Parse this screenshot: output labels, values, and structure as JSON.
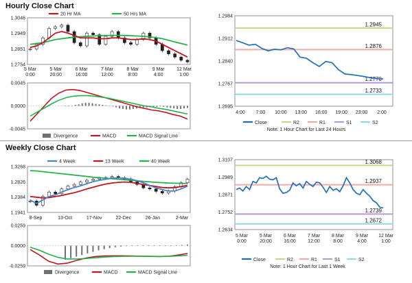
{
  "titles": {
    "hourly": "Hourly Close Chart",
    "weekly": "Weekly Close Chart"
  },
  "chart_data": [
    {
      "id": "hourly_price",
      "type": "candlestick",
      "legend": [
        "20 Hr MA",
        "50 Hrs MA"
      ],
      "yticks": [
        "1.3046",
        "1.2949",
        "1.2851",
        "1.2754"
      ],
      "ylim": [
        1.2754,
        1.3046
      ],
      "xticks": [
        [
          "5 Mar",
          "0:00"
        ],
        [
          "5 Mar",
          "20:00"
        ],
        [
          "6 Mar",
          "16:00"
        ],
        [
          "7 Mar",
          "12:00"
        ],
        [
          "8 Mar",
          "8:00"
        ],
        [
          "9 Mar",
          "4:00"
        ],
        [
          "12 Mar",
          "1:00"
        ]
      ],
      "close": [
        1.285,
        1.288,
        1.292,
        1.298,
        1.299,
        1.3,
        1.296,
        1.289,
        1.287,
        1.295,
        1.294,
        1.288,
        1.293,
        1.296,
        1.292,
        1.289,
        1.288,
        1.291,
        1.295,
        1.292,
        1.288,
        1.284,
        1.282,
        1.28,
        1.278,
        1.277
      ],
      "ma20": [
        1.286,
        1.287,
        1.289,
        1.292,
        1.295,
        1.296,
        1.295,
        1.2935,
        1.292,
        1.292,
        1.292,
        1.2915,
        1.2915,
        1.292,
        1.292,
        1.2915,
        1.291,
        1.291,
        1.2915,
        1.291,
        1.29,
        1.288,
        1.286,
        1.284,
        1.282,
        1.28
      ],
      "ma50": [
        1.288,
        1.2885,
        1.289,
        1.29,
        1.291,
        1.2915,
        1.292,
        1.2925,
        1.2928,
        1.293,
        1.2932,
        1.2934,
        1.2935,
        1.2936,
        1.2936,
        1.2935,
        1.2934,
        1.2932,
        1.293,
        1.2926,
        1.2922,
        1.2915,
        1.2905,
        1.2895,
        1.2885,
        1.2875
      ]
    },
    {
      "id": "hourly_macd",
      "type": "bar+line",
      "yticks": [
        "0.0045",
        "0.0000",
        "-0.0045"
      ],
      "ylim": [
        -0.0045,
        0.0045
      ],
      "legend": [
        "Divergence",
        "MACD",
        "MACD Signal Line"
      ],
      "divergence": [
        0,
        0,
        0,
        0.0002,
        0.0003,
        0.0005,
        0.0006,
        0.0006,
        0.0005,
        0.0004,
        0.0003,
        0.0002,
        0.0001,
        0.0,
        -0.0001,
        -0.0003,
        -0.0005,
        -0.0006,
        -0.0007,
        -0.0007,
        -0.0006,
        -0.0005,
        -0.0004,
        -0.0003,
        -0.0003,
        -0.0002,
        -0.0002,
        -0.0002,
        -0.0001,
        -0.0002,
        -0.0003,
        -0.0004,
        -0.0005,
        -0.0006,
        -0.0006,
        -0.0005,
        -0.0004
      ],
      "macd": [
        -0.003,
        -0.0015,
        0.0,
        0.0015,
        0.0025,
        0.0031,
        0.0032,
        0.003,
        0.0026,
        0.0022,
        0.0018,
        0.0014,
        0.001,
        0.0006,
        0.0002,
        -0.0002,
        -0.0005,
        -0.0008,
        -0.001,
        -0.0013,
        -0.0017,
        -0.002,
        -0.0026
      ],
      "signal": [
        -0.002,
        -0.0012,
        -0.0004,
        0.0004,
        0.0011,
        0.0016,
        0.0019,
        0.002,
        0.002,
        0.0019,
        0.0017,
        0.0015,
        0.0012,
        0.0009,
        0.0006,
        0.0003,
        0.0,
        -0.0002,
        -0.0005,
        -0.0007,
        -0.001,
        -0.0013,
        -0.0016
      ]
    },
    {
      "id": "hourly_24h",
      "type": "line",
      "yticks": [
        "1.2984",
        "1.2912",
        "1.2840",
        "1.2767",
        "1.2695"
      ],
      "ylim": [
        1.2695,
        1.2984
      ],
      "xticks": [
        "4:00",
        "7:00",
        "10:00",
        "13:00",
        "16:00",
        "19:00",
        "23:00",
        "2:00"
      ],
      "close": [
        1.2905,
        1.2898,
        1.289,
        1.2893,
        1.288,
        1.2872,
        1.2877,
        1.2875,
        1.2882,
        1.2878,
        1.2852,
        1.2848,
        1.2834,
        1.2822,
        1.2838,
        1.2834,
        1.2812,
        1.2798,
        1.2796,
        1.2793,
        1.279,
        1.2786,
        1.2783,
        1.2782
      ],
      "levels": [
        {
          "name": "R2",
          "value": 1.2945,
          "label": "1.2945",
          "color": "#c5d88a"
        },
        {
          "name": "R1",
          "value": 1.2876,
          "label": "1.2876",
          "color": "#f0aaaa"
        },
        {
          "name": "S1",
          "value": 1.277,
          "label": "1.2770",
          "color": "#b49ad8"
        },
        {
          "name": "S2",
          "value": 1.2733,
          "label": "1.2733",
          "color": "#96d6e0"
        }
      ],
      "legend": [
        "Close",
        "R2",
        "R1",
        "S1",
        "S2"
      ],
      "note": "Note: 1 Hour Chart for Last 24 Hours"
    },
    {
      "id": "weekly_price",
      "type": "candlestick",
      "legend": [
        "4 Week",
        "13 Week",
        "40 Week"
      ],
      "yticks": [
        "1.3268",
        "1.2826",
        "1.2384",
        "1.1941"
      ],
      "ylim": [
        1.1941,
        1.3268
      ],
      "xticks": [
        "8-Sep",
        "13-Oct",
        "17-Nov",
        "22-Dec",
        "26-Jan",
        "2-Mar"
      ],
      "close": [
        1.227,
        1.215,
        1.24,
        1.253,
        1.248,
        1.262,
        1.27,
        1.275,
        1.282,
        1.287,
        1.29,
        1.293,
        1.295,
        1.298,
        1.294,
        1.291,
        1.283,
        1.275,
        1.265,
        1.262,
        1.255,
        1.25,
        1.256,
        1.268,
        1.28,
        1.29
      ],
      "ma4": [
        1.23,
        1.22,
        1.23,
        1.24,
        1.245,
        1.253,
        1.26,
        1.266,
        1.271,
        1.277,
        1.283,
        1.287,
        1.29,
        1.293,
        1.294,
        1.293,
        1.29,
        1.286,
        1.28,
        1.272,
        1.265,
        1.26,
        1.256,
        1.256,
        1.262,
        1.27
      ],
      "ma13": [
        1.24,
        1.238,
        1.236,
        1.237,
        1.24,
        1.243,
        1.247,
        1.251,
        1.256,
        1.262,
        1.267,
        1.272,
        1.276,
        1.279,
        1.281,
        1.282,
        1.281,
        1.278,
        1.275,
        1.272,
        1.269,
        1.266,
        1.265,
        1.266,
        1.269,
        1.272
      ],
      "ma40": [
        1.315,
        1.314,
        1.312,
        1.31,
        1.308,
        1.306,
        1.304,
        1.302,
        1.3,
        1.298,
        1.296,
        1.2945,
        1.293,
        1.2915,
        1.29,
        1.2885,
        1.287,
        1.2855,
        1.284,
        1.2825,
        1.281,
        1.28,
        1.279,
        1.2785,
        1.278,
        1.278
      ]
    },
    {
      "id": "weekly_macd",
      "type": "bar+line",
      "yticks": [
        "0.0259",
        "0.0000",
        "-0.0259"
      ],
      "ylim": [
        -0.0259,
        0.0259
      ],
      "legend": [
        "Divergence",
        "MACD",
        "MACD Signal Line"
      ],
      "divergence": [
        -0.018,
        -0.016,
        -0.014,
        -0.012,
        -0.01,
        -0.008,
        -0.006,
        -0.0045,
        -0.003,
        -0.002,
        -0.0012,
        -0.0006,
        -0.0002,
        0.0002,
        0.0004,
        0.0004,
        0.0003,
        0.0002,
        0.0001,
        0.0002,
        0.0004,
        0.0008,
        0.0014
      ],
      "macd": [
        -0.005,
        -0.012,
        -0.02,
        -0.0235,
        -0.0225,
        -0.019,
        -0.016,
        -0.014,
        -0.0132,
        -0.013,
        -0.013,
        -0.0132,
        -0.0135,
        -0.0138,
        -0.014,
        -0.0135,
        -0.012,
        -0.01
      ],
      "signal": [
        -0.002,
        -0.006,
        -0.011,
        -0.015,
        -0.017,
        -0.017,
        -0.0165,
        -0.0155,
        -0.0147,
        -0.014,
        -0.0137,
        -0.0136,
        -0.0136,
        -0.0137,
        -0.0138,
        -0.0137,
        -0.0132,
        -0.0124
      ]
    },
    {
      "id": "weekly_1w",
      "type": "line",
      "yticks": [
        "1.3107",
        "1.2989",
        "1.2871",
        "1.2752",
        "1.2634"
      ],
      "ylim": [
        1.2634,
        1.3107
      ],
      "xticks": [
        [
          "5 Mar",
          "0:00"
        ],
        [
          "5 Mar",
          "20:00"
        ],
        [
          "6 Mar",
          "16:00"
        ],
        [
          "7 Mar",
          "12:00"
        ],
        [
          "8 Mar",
          "8:00"
        ],
        [
          "9 Mar",
          "4:00"
        ],
        [
          "12 Mar",
          "1:00"
        ]
      ],
      "close": [
        1.2905,
        1.2915,
        1.2895,
        1.2925,
        1.2905,
        1.296,
        1.295,
        1.2985,
        1.298,
        1.2995,
        1.2975,
        1.297,
        1.2985,
        1.291,
        1.288,
        1.2885,
        1.29,
        1.295,
        1.293,
        1.2945,
        1.2915,
        1.296,
        1.294,
        1.2925,
        1.2955,
        1.295,
        1.292,
        1.2885,
        1.2925,
        1.29,
        1.291,
        1.289,
        1.293,
        1.2985,
        1.295,
        1.2905,
        1.288,
        1.287,
        1.2905,
        1.288,
        1.286,
        1.283,
        1.2815,
        1.2785,
        1.278
      ],
      "levels": [
        {
          "name": "R2",
          "value": 1.3068,
          "label": "1.3068",
          "color": "#c5d88a"
        },
        {
          "name": "R1",
          "value": 1.2937,
          "label": "1.2937",
          "color": "#f0aaaa"
        },
        {
          "name": "S1",
          "value": 1.2739,
          "label": "1.2739",
          "color": "#b49ad8"
        },
        {
          "name": "S2",
          "value": 1.2672,
          "label": "1.2672",
          "color": "#96d6e0"
        }
      ],
      "legend": [
        "Close",
        "R2",
        "R1",
        "S1",
        "S2"
      ],
      "note": "Note: 1 Hour Chart for Last 1 Week"
    }
  ],
  "colors": {
    "ma_red": "#c0141e",
    "ma_green": "#21b24a",
    "ma_blue": "#4a7fc9",
    "close": "#1f6fb7",
    "divergence": "#707070"
  }
}
